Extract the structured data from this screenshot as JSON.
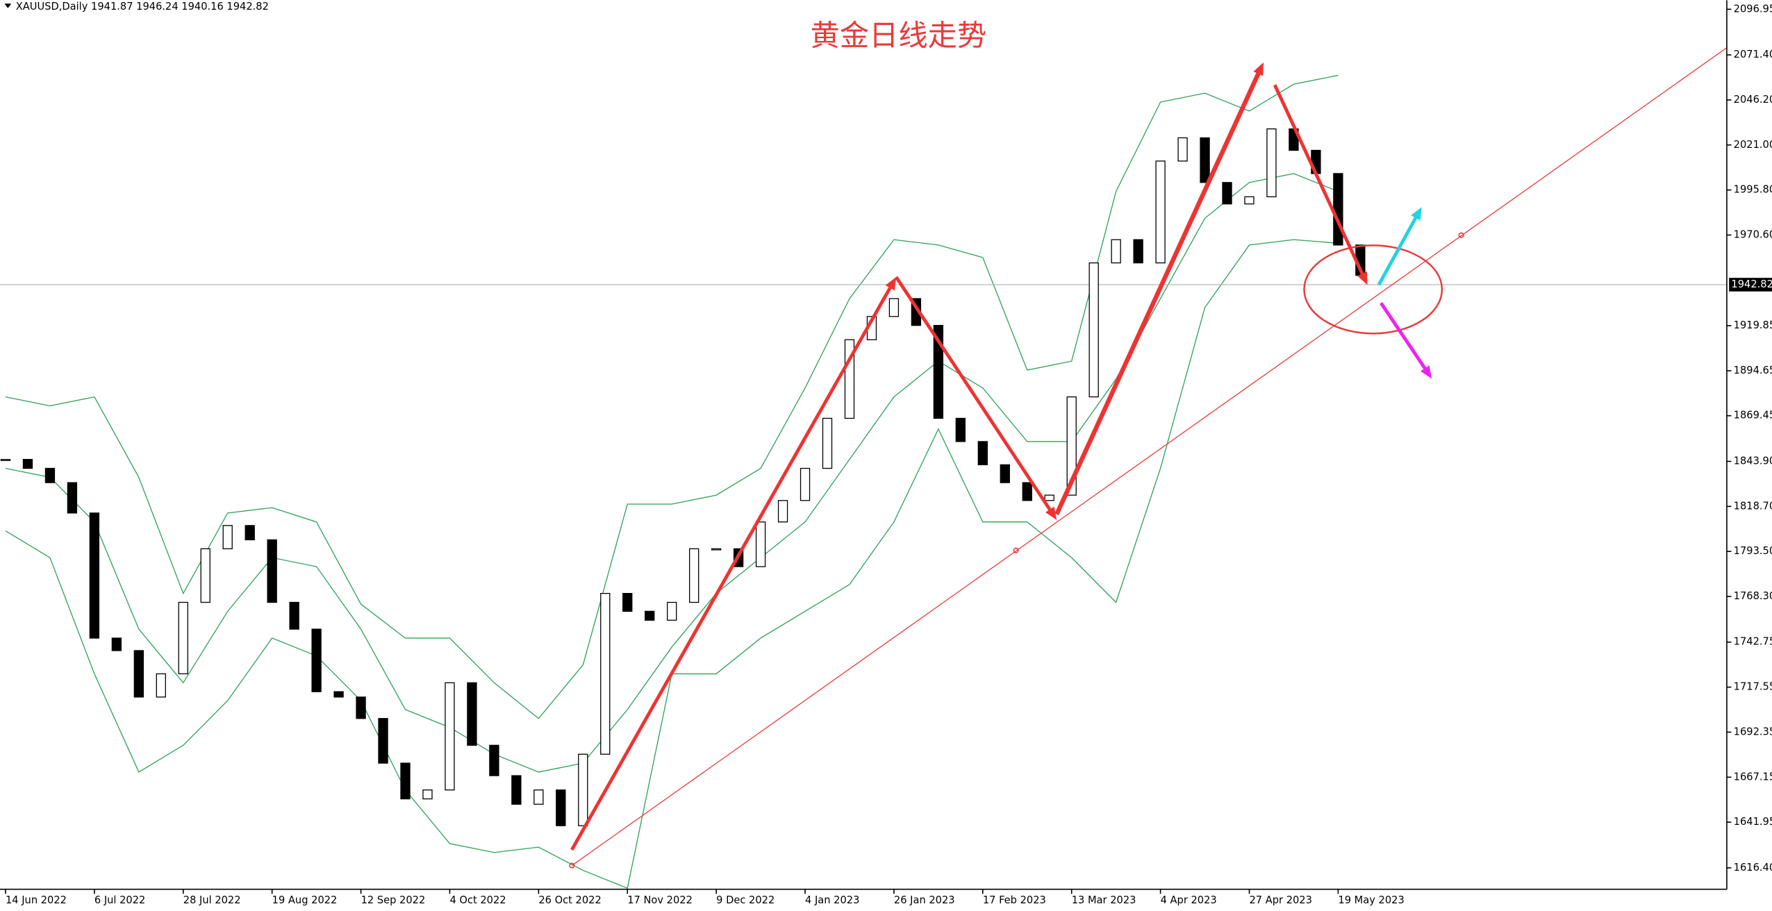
{
  "header": "XAUUSD,Daily  1941.87 1946.24 1940.16 1942.82",
  "chart_data": {
    "type": "candlestick",
    "title": "黄金日线走势",
    "x": [
      0,
      4,
      8,
      12,
      16,
      20,
      24,
      28,
      32,
      36,
      40,
      44,
      48,
      52,
      56,
      60,
      64,
      68,
      72,
      76,
      80,
      84,
      88,
      92,
      96,
      100,
      104,
      108,
      112,
      116,
      120,
      124,
      128,
      132,
      136,
      140,
      144,
      148,
      152,
      156,
      160,
      164,
      168,
      172,
      176,
      180,
      184,
      188,
      192,
      196,
      200,
      204,
      208,
      212,
      216,
      220,
      224,
      228,
      232,
      236,
      240,
      244
    ],
    "values": [
      1845,
      1840,
      1832,
      1815,
      1745,
      1738,
      1712,
      1725,
      1765,
      1795,
      1808,
      1800,
      1765,
      1750,
      1715,
      1712,
      1700,
      1675,
      1655,
      1660,
      1720,
      1685,
      1668,
      1652,
      1660,
      1640,
      1680,
      1770,
      1760,
      1755,
      1765,
      1795,
      1795,
      1785,
      1810,
      1822,
      1840,
      1868,
      1912,
      1925,
      1935,
      1920,
      1868,
      1855,
      1842,
      1832,
      1822,
      1825,
      1880,
      1955,
      1968,
      1955,
      2012,
      2025,
      2000,
      1988,
      1992,
      2030,
      2018,
      2005,
      1965,
      1948
    ],
    "bands": {
      "x": [
        0,
        8,
        16,
        24,
        32,
        40,
        48,
        56,
        64,
        72,
        80,
        88,
        96,
        104,
        112,
        120,
        128,
        136,
        144,
        152,
        160,
        168,
        176,
        184,
        192,
        200,
        208,
        216,
        224,
        232,
        240
      ],
      "upper": [
        1880,
        1875,
        1880,
        1835,
        1770,
        1815,
        1818,
        1810,
        1764,
        1745,
        1745,
        1720,
        1700,
        1730,
        1820,
        1820,
        1825,
        1840,
        1885,
        1935,
        1968,
        1965,
        1958,
        1895,
        1900,
        1995,
        2045,
        2050,
        2040,
        2055,
        2060
      ],
      "middle": [
        1840,
        1835,
        1810,
        1750,
        1720,
        1760,
        1790,
        1785,
        1750,
        1705,
        1695,
        1680,
        1670,
        1675,
        1705,
        1740,
        1770,
        1790,
        1810,
        1845,
        1880,
        1900,
        1885,
        1855,
        1855,
        1890,
        1935,
        1980,
        2000,
        2005,
        1995
      ],
      "lower": [
        1805,
        1790,
        1725,
        1670,
        1685,
        1710,
        1745,
        1735,
        1710,
        1660,
        1630,
        1625,
        1628,
        1615,
        1605,
        1725,
        1725,
        1745,
        1760,
        1775,
        1810,
        1862,
        1810,
        1810,
        1790,
        1765,
        1840,
        1930,
        1965,
        1968,
        1966
      ],
      "color": "#2ca05a"
    },
    "xlim": [
      -1,
      310
    ],
    "xticks": [
      {
        "value": 0,
        "label": "14 Jun 2022"
      },
      {
        "value": 16,
        "label": "6 Jul 2022"
      },
      {
        "value": 32,
        "label": "28 Jul 2022"
      },
      {
        "value": 48,
        "label": "19 Aug 2022"
      },
      {
        "value": 64,
        "label": "12 Sep 2022"
      },
      {
        "value": 80,
        "label": "4 Oct 2022"
      },
      {
        "value": 96,
        "label": "26 Oct 2022"
      },
      {
        "value": 112,
        "label": "17 Nov 2022"
      },
      {
        "value": 128,
        "label": "9 Dec 2022"
      },
      {
        "value": 144,
        "label": "4 Jan 2023"
      },
      {
        "value": 160,
        "label": "26 Jan 2023"
      },
      {
        "value": 176,
        "label": "17 Feb 2023"
      },
      {
        "value": 192,
        "label": "13 Mar 2023"
      },
      {
        "value": 208,
        "label": "4 Apr 2023"
      },
      {
        "value": 224,
        "label": "27 Apr 2023"
      },
      {
        "value": 240,
        "label": "19 May 2023"
      }
    ],
    "ylim": [
      1604.4,
      2102.0
    ],
    "yticks": [
      2096.95,
      {
        "value": 2071.4,
        "label": "2071.40"
      },
      {
        "value": 2046.2,
        "label": "2046.20"
      },
      {
        "value": 2021,
        "label": "2021.00"
      },
      {
        "value": 1995.8,
        "label": "1995.80"
      },
      {
        "value": 1970.6,
        "label": "1970.60"
      },
      1919.85,
      1894.65,
      1869.45,
      {
        "value": 1843.9,
        "label": "1843.90"
      },
      {
        "value": 1818.7,
        "label": "1818.70"
      },
      {
        "value": 1793.5,
        "label": "1793.50"
      },
      {
        "value": 1768.3,
        "label": "1768.30"
      },
      1742.75,
      1717.55,
      1692.35,
      1667.15,
      1641.95,
      {
        "value": 1616.4,
        "label": "1616.40"
      }
    ],
    "last_price": 1942.82
  }
}
